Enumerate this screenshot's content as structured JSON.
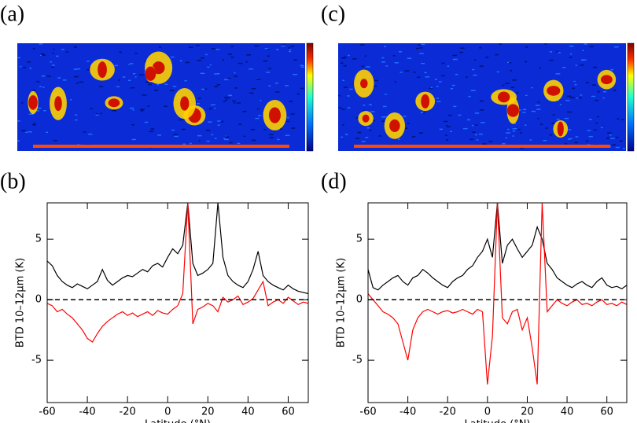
{
  "chart_data": [
    {
      "type": "curtain",
      "label": "(a)"
    },
    {
      "type": "line",
      "label": "(b)",
      "y_label": "BTD 10–12μm (K)",
      "x_label": "Latitude (°N)",
      "xlim": [
        -60,
        70
      ],
      "ylim": [
        -8.5,
        8
      ],
      "xticks": [
        -60,
        -40,
        -20,
        0,
        20,
        40,
        60
      ],
      "yticks": [
        -5,
        0,
        5
      ],
      "hline": 0,
      "x": [
        -60,
        -57.5,
        -55,
        -52.5,
        -50,
        -47.5,
        -45,
        -42.5,
        -40,
        -37.5,
        -35,
        -32.5,
        -30,
        -27.5,
        -25,
        -22.5,
        -20,
        -17.5,
        -15,
        -12.5,
        -10,
        -7.5,
        -5,
        -2.5,
        0,
        2.5,
        5,
        7.5,
        10,
        12.5,
        15,
        17.5,
        20,
        22.5,
        25,
        27.5,
        30,
        32.5,
        35,
        37.5,
        40,
        42.5,
        45,
        47.5,
        50,
        52.5,
        55,
        57.5,
        60,
        62.5,
        65,
        67.5,
        70
      ],
      "series": [
        {
          "color": "#000000",
          "values": [
            3.2,
            2.8,
            2.0,
            1.5,
            1.2,
            1.0,
            1.3,
            1.1,
            0.9,
            1.2,
            1.5,
            2.5,
            1.6,
            1.2,
            1.5,
            1.8,
            2.0,
            1.9,
            2.2,
            2.5,
            2.3,
            2.8,
            3.0,
            2.7,
            3.5,
            4.2,
            3.8,
            4.5,
            8.0,
            3.0,
            2.0,
            2.2,
            2.5,
            3.0,
            8.0,
            3.5,
            2.0,
            1.5,
            1.2,
            1.0,
            1.5,
            2.5,
            4.0,
            2.0,
            1.5,
            1.2,
            1.0,
            0.8,
            1.2,
            0.9,
            0.7,
            0.6,
            0.5
          ]
        },
        {
          "color": "#ff0000",
          "values": [
            -0.3,
            -0.5,
            -1.0,
            -0.8,
            -1.2,
            -1.5,
            -2.0,
            -2.5,
            -3.2,
            -3.5,
            -2.8,
            -2.2,
            -1.8,
            -1.5,
            -1.2,
            -1.0,
            -1.3,
            -1.1,
            -1.4,
            -1.2,
            -1.0,
            -1.3,
            -0.9,
            -1.1,
            -1.2,
            -0.8,
            -0.5,
            0.5,
            8.0,
            -2.0,
            -0.8,
            -0.6,
            -0.3,
            -0.5,
            -1.0,
            0.2,
            -0.2,
            0.0,
            0.3,
            -0.4,
            -0.2,
            0.1,
            0.8,
            1.5,
            -0.5,
            -0.2,
            0.0,
            -0.3,
            0.2,
            -0.1,
            -0.4,
            -0.2,
            -0.3
          ]
        }
      ]
    },
    {
      "type": "curtain",
      "label": "(c)"
    },
    {
      "type": "line",
      "label": "(d)",
      "y_label": "BTD 10–12μm (K)",
      "x_label": "Latitude (°N)",
      "xlim": [
        -60,
        70
      ],
      "ylim": [
        -8.5,
        8
      ],
      "xticks": [
        -60,
        -40,
        -20,
        0,
        20,
        40,
        60
      ],
      "yticks": [
        -5,
        0,
        5
      ],
      "hline": 0,
      "x": [
        -60,
        -57.5,
        -55,
        -52.5,
        -50,
        -47.5,
        -45,
        -42.5,
        -40,
        -37.5,
        -35,
        -32.5,
        -30,
        -27.5,
        -25,
        -22.5,
        -20,
        -17.5,
        -15,
        -12.5,
        -10,
        -7.5,
        -5,
        -2.5,
        0,
        2.5,
        5,
        7.5,
        10,
        12.5,
        15,
        17.5,
        20,
        22.5,
        25,
        27.5,
        30,
        32.5,
        35,
        37.5,
        40,
        42.5,
        45,
        47.5,
        50,
        52.5,
        55,
        57.5,
        60,
        62.5,
        65,
        67.5,
        70
      ],
      "series": [
        {
          "color": "#000000",
          "values": [
            2.5,
            1.0,
            0.8,
            1.2,
            1.5,
            1.8,
            2.0,
            1.5,
            1.2,
            1.8,
            2.0,
            2.5,
            2.2,
            1.8,
            1.5,
            1.2,
            1.0,
            1.5,
            1.8,
            2.0,
            2.5,
            2.8,
            3.5,
            4.0,
            5.0,
            3.5,
            8.0,
            3.0,
            4.5,
            5.0,
            4.2,
            3.5,
            4.0,
            4.5,
            6.0,
            5.0,
            3.0,
            2.5,
            1.8,
            1.5,
            1.2,
            1.0,
            1.3,
            1.5,
            1.2,
            1.0,
            1.5,
            1.8,
            1.2,
            1.0,
            1.1,
            0.9,
            1.2
          ]
        },
        {
          "color": "#ff0000",
          "values": [
            0.5,
            0.0,
            -0.5,
            -1.0,
            -1.2,
            -1.5,
            -2.0,
            -3.5,
            -5.0,
            -2.5,
            -1.5,
            -1.0,
            -0.8,
            -1.0,
            -1.2,
            -1.0,
            -0.9,
            -1.1,
            -1.0,
            -0.8,
            -1.0,
            -1.2,
            -0.8,
            -1.0,
            -7.0,
            -3.0,
            8.0,
            -1.5,
            -2.0,
            -1.0,
            -0.8,
            -2.5,
            -1.5,
            -4.0,
            -7.0,
            8.0,
            -1.0,
            -0.5,
            0.0,
            -0.3,
            -0.5,
            -0.2,
            0.0,
            -0.4,
            -0.3,
            -0.5,
            -0.2,
            0.0,
            -0.4,
            -0.3,
            -0.5,
            -0.2,
            -0.4
          ]
        }
      ]
    }
  ]
}
